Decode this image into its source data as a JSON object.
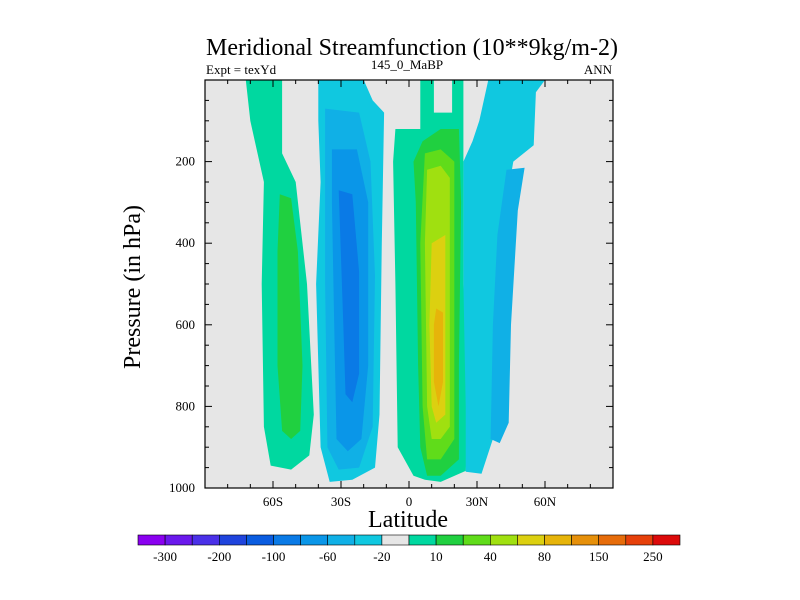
{
  "chart_data": {
    "type": "contour",
    "title": "Meridional Streamfunction (10**9kg/m-2)",
    "left_label": "Expt = texYd",
    "center_label": "145_0_MaBP",
    "right_label": "ANN",
    "xlabel": "Latitude",
    "ylabel": "Pressure (in hPa)",
    "xlim": [
      -90,
      90
    ],
    "ylim": [
      1000,
      0
    ],
    "x_ticks": [
      {
        "value": -60,
        "label": "60S"
      },
      {
        "value": -30,
        "label": "30S"
      },
      {
        "value": 0,
        "label": "0"
      },
      {
        "value": 30,
        "label": "30N"
      },
      {
        "value": 60,
        "label": "60N"
      }
    ],
    "y_ticks": [
      {
        "value": 200,
        "label": "200"
      },
      {
        "value": 400,
        "label": "400"
      },
      {
        "value": 600,
        "label": "600"
      },
      {
        "value": 800,
        "label": "800"
      },
      {
        "value": 1000,
        "label": "1000"
      }
    ],
    "missing_color": "#e6e6e6",
    "colorbar": {
      "colors": [
        "#8a00f0",
        "#6a18ec",
        "#4a30e8",
        "#1f44dd",
        "#0a5ce0",
        "#0a7ae6",
        "#0a96e8",
        "#10b0e6",
        "#10c8e0",
        "#e6e6e6",
        "#00d8a0",
        "#20d040",
        "#60dc1a",
        "#a0e010",
        "#dcd010",
        "#e6b40a",
        "#e6900a",
        "#e66c0a",
        "#e6400a",
        "#dc0a0a"
      ],
      "labels": [
        "-300",
        "-200",
        "-100",
        "-60",
        "-20",
        "10",
        "40",
        "80",
        "150",
        "250"
      ]
    },
    "regions": [
      {
        "fill": "#00d8a0",
        "points": [
          [
            -72,
            0
          ],
          [
            -56,
            0
          ],
          [
            -56,
            180
          ],
          [
            -50,
            250
          ],
          [
            -45,
            500
          ],
          [
            -42,
            820
          ],
          [
            -44,
            920
          ],
          [
            -52,
            955
          ],
          [
            -61,
            945
          ],
          [
            -64,
            850
          ],
          [
            -65,
            500
          ],
          [
            -64,
            250
          ],
          [
            -70,
            100
          ],
          [
            -72,
            0
          ]
        ]
      },
      {
        "fill": "#20d040",
        "points": [
          [
            -57,
            280
          ],
          [
            -52,
            290
          ],
          [
            -49,
            420
          ],
          [
            -47,
            700
          ],
          [
            -48,
            860
          ],
          [
            -52,
            880
          ],
          [
            -56,
            860
          ],
          [
            -58,
            700
          ],
          [
            -58,
            420
          ],
          [
            -57,
            280
          ]
        ]
      },
      {
        "fill": "#10c8e0",
        "points": [
          [
            -40,
            0
          ],
          [
            -20,
            0
          ],
          [
            -16,
            50
          ],
          [
            -11,
            80
          ],
          [
            -12,
            400
          ],
          [
            -13,
            820
          ],
          [
            -15,
            950
          ],
          [
            -25,
            980
          ],
          [
            -35,
            985
          ],
          [
            -39,
            900
          ],
          [
            -41,
            500
          ],
          [
            -39,
            250
          ],
          [
            -40,
            100
          ],
          [
            -40,
            0
          ]
        ]
      },
      {
        "fill": "#10b0e6",
        "points": [
          [
            -37,
            70
          ],
          [
            -22,
            80
          ],
          [
            -17,
            200
          ],
          [
            -15,
            480
          ],
          [
            -16,
            850
          ],
          [
            -22,
            950
          ],
          [
            -31,
            955
          ],
          [
            -36,
            900
          ],
          [
            -37,
            500
          ],
          [
            -37,
            70
          ]
        ]
      },
      {
        "fill": "#0a96e8",
        "points": [
          [
            -34,
            170
          ],
          [
            -23,
            170
          ],
          [
            -18,
            300
          ],
          [
            -18,
            700
          ],
          [
            -21,
            880
          ],
          [
            -27,
            910
          ],
          [
            -32,
            880
          ],
          [
            -33,
            600
          ],
          [
            -34,
            300
          ],
          [
            -34,
            170
          ]
        ]
      },
      {
        "fill": "#0a7ae6",
        "points": [
          [
            -31,
            270
          ],
          [
            -25,
            280
          ],
          [
            -22,
            470
          ],
          [
            -22,
            720
          ],
          [
            -25,
            790
          ],
          [
            -28,
            770
          ],
          [
            -29,
            600
          ],
          [
            -31,
            270
          ]
        ]
      },
      {
        "fill": "#10c8e0",
        "points": [
          [
            35,
            0
          ],
          [
            60,
            0
          ],
          [
            56,
            30
          ],
          [
            55,
            160
          ],
          [
            46,
            200
          ],
          [
            42,
            330
          ],
          [
            37,
            880
          ],
          [
            32,
            965
          ],
          [
            25,
            960
          ],
          [
            24,
            800
          ],
          [
            24,
            500
          ],
          [
            24,
            200
          ],
          [
            28,
            150
          ],
          [
            31,
            100
          ],
          [
            35,
            0
          ]
        ]
      },
      {
        "fill": "#10b0e6",
        "points": [
          [
            43,
            220
          ],
          [
            51,
            215
          ],
          [
            48,
            320
          ],
          [
            45,
            600
          ],
          [
            44,
            840
          ],
          [
            40,
            890
          ],
          [
            36,
            880
          ],
          [
            37,
            600
          ],
          [
            39,
            380
          ],
          [
            43,
            220
          ]
        ]
      },
      {
        "fill": "#00d8a0",
        "points": [
          [
            5,
            0
          ],
          [
            11,
            0
          ],
          [
            11,
            80
          ],
          [
            19,
            80
          ],
          [
            19,
            0
          ],
          [
            24,
            0
          ],
          [
            24,
            500
          ],
          [
            25,
            800
          ],
          [
            25,
            958
          ],
          [
            14,
            985
          ],
          [
            7,
            980
          ],
          [
            2,
            970
          ],
          [
            -5,
            900
          ],
          [
            -6,
            500
          ],
          [
            -7,
            200
          ],
          [
            -6,
            120
          ],
          [
            5,
            120
          ],
          [
            5,
            0
          ]
        ]
      },
      {
        "fill": "#20d040",
        "points": [
          [
            6,
            150
          ],
          [
            14,
            120
          ],
          [
            22,
            120
          ],
          [
            23,
            300
          ],
          [
            22,
            700
          ],
          [
            22,
            930
          ],
          [
            14,
            970
          ],
          [
            8,
            970
          ],
          [
            5,
            900
          ],
          [
            4,
            700
          ],
          [
            3,
            300
          ],
          [
            2,
            200
          ],
          [
            6,
            150
          ]
        ]
      },
      {
        "fill": "#60dc1a",
        "points": [
          [
            7,
            180
          ],
          [
            14,
            170
          ],
          [
            20,
            200
          ],
          [
            20,
            600
          ],
          [
            20,
            880
          ],
          [
            14,
            930
          ],
          [
            8,
            930
          ],
          [
            6,
            800
          ],
          [
            5,
            400
          ],
          [
            7,
            180
          ]
        ]
      },
      {
        "fill": "#a0e010",
        "points": [
          [
            8,
            220
          ],
          [
            14,
            210
          ],
          [
            18,
            240
          ],
          [
            18,
            600
          ],
          [
            18,
            850
          ],
          [
            14,
            880
          ],
          [
            10,
            880
          ],
          [
            8,
            800
          ],
          [
            7,
            400
          ],
          [
            8,
            220
          ]
        ]
      },
      {
        "fill": "#dcd010",
        "points": [
          [
            10,
            400
          ],
          [
            16,
            380
          ],
          [
            16,
            600
          ],
          [
            16,
            820
          ],
          [
            12,
            840
          ],
          [
            10,
            800
          ],
          [
            9,
            600
          ],
          [
            10,
            400
          ]
        ]
      },
      {
        "fill": "#e6b40a",
        "points": [
          [
            12,
            560
          ],
          [
            15,
            570
          ],
          [
            15,
            740
          ],
          [
            13,
            800
          ],
          [
            11,
            740
          ],
          [
            11,
            600
          ],
          [
            12,
            560
          ]
        ]
      }
    ]
  }
}
